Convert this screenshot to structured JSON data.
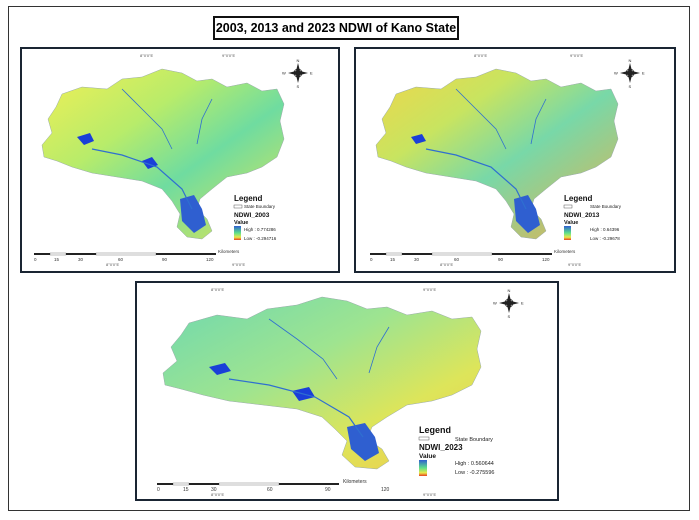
{
  "title": "2003, 2013 and 2023 NDWI of Kano State",
  "colors": {
    "high": "#2f5fd0",
    "mid": "#5fe08a",
    "yellow": "#e8e84a",
    "low": "#e84020",
    "water": "#1a3fd8",
    "panel_border": "#1a2533"
  },
  "maps": [
    {
      "id": "2003",
      "legend_title": "Legend",
      "boundary_label": "State Boundary",
      "layer_name": "NDWI_2003",
      "value_label": "Value",
      "high_label": "High : 0.774286",
      "low_label": "Low : -0.294716",
      "scale_ticks": [
        "0",
        "15",
        "30",
        "60",
        "90",
        "120"
      ],
      "scale_unit": "Kilometers",
      "coord_label": "8°0'0\"E",
      "coord_label2": "9°0'0\"E",
      "north": {
        "n": "N",
        "s": "S",
        "e": "E",
        "w": "W"
      }
    },
    {
      "id": "2013",
      "legend_title": "Legend",
      "boundary_label": "State Boundary",
      "layer_name": "NDWI_2013",
      "value_label": "Value",
      "high_label": "High : 0.64396",
      "low_label": "Low : -0.29678",
      "scale_ticks": [
        "0",
        "15",
        "30",
        "60",
        "90",
        "120"
      ],
      "scale_unit": "Kilometers",
      "coord_label": "8°0'0\"E",
      "coord_label2": "9°0'0\"E",
      "north": {
        "n": "N",
        "s": "S",
        "e": "E",
        "w": "W"
      }
    },
    {
      "id": "2023",
      "legend_title": "Legend",
      "boundary_label": "State Boundary",
      "layer_name": "NDWI_2023",
      "value_label": "Value",
      "high_label": "High : 0.560644",
      "low_label": "Low : -0.275596",
      "scale_ticks": [
        "0",
        "15",
        "30",
        "60",
        "90",
        "120"
      ],
      "scale_unit": "Kilometers",
      "coord_label": "8°0'0\"E",
      "coord_label2": "9°0'0\"E",
      "north": {
        "n": "N",
        "s": "S",
        "e": "E",
        "w": "W"
      }
    }
  ]
}
